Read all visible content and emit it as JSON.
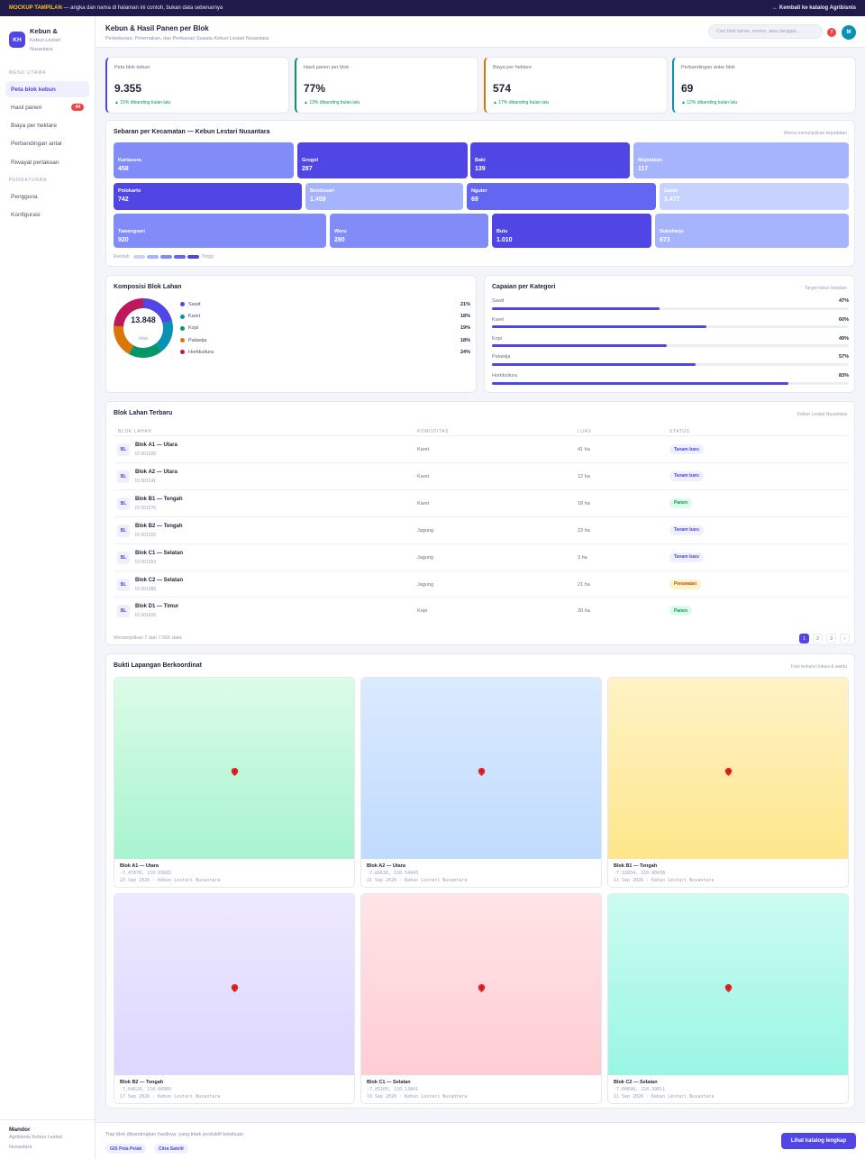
{
  "banner": {
    "tag": "MOCKUP TAMPILAN",
    "text": " — angka dan nama di halaman ini contoh, bukan data sebenarnya",
    "back_link": "← Kembali ke katalog Agribisnis"
  },
  "brand": {
    "logo": "KH",
    "title": "Kebun &",
    "subtitle_1": "Kebun Lestari",
    "subtitle_2": "Nusantara"
  },
  "sidebar": {
    "section_main": "MENU UTAMA",
    "items": [
      {
        "label": "Peta blok kebun",
        "active": true
      },
      {
        "label": "Hasil panen",
        "badge": "44"
      },
      {
        "label": "Biaya per hektare"
      },
      {
        "label": "Perbandingan antar"
      },
      {
        "label": "Riwayat perlakuan"
      }
    ],
    "section_settings": "PENGATURAN",
    "settings": [
      {
        "label": "Pengguna"
      },
      {
        "label": "Konfigurasi"
      }
    ],
    "footer": {
      "role": "Mandor",
      "org_1": "Agribisnis Kebun Lestari",
      "org_2": "Nusantara"
    }
  },
  "header": {
    "title": "Kebun & Hasil Panen per Blok",
    "subtitle": "Perkebunan, Peternakan, dan Perikanan Swasta Kebun Lestari Nusantara",
    "search_placeholder": "Cari blok lahan, nomor, atau tanggal...",
    "notif_count": "7",
    "avatar": "M"
  },
  "kpis": [
    {
      "label": "Peta blok kebun",
      "value": "9.355",
      "delta": "▲ 15% dibanding bulan lalu",
      "color": "#4f46e5"
    },
    {
      "label": "Hasil panen per blok",
      "value": "77%",
      "delta": "▲ 13% dibanding bulan lalu",
      "color": "#059669"
    },
    {
      "label": "Biaya per hektare",
      "value": "574",
      "delta": "▲ 17% dibanding bulan lalu",
      "color": "#d97706"
    },
    {
      "label": "Perbandingan antar blok",
      "value": "69",
      "delta": "▲ 12% dibanding bulan lalu",
      "color": "#0891b2"
    }
  ],
  "treemap": {
    "title": "Sebaran per Kecamatan — Kebun Lestari Nusantara",
    "note": "Warna menunjukkan kepadatan",
    "legend_low": "Rendah",
    "legend_high": "Tinggi",
    "cells": [
      {
        "name": "Kartasura",
        "value": "458",
        "color": "#818cf8"
      },
      {
        "name": "Grogol",
        "value": "287",
        "color": "#4f46e5"
      },
      {
        "name": "Baki",
        "value": "139",
        "color": "#4f46e5"
      },
      {
        "name": "Mojolaban",
        "value": "117",
        "color": "#a5b4fc"
      },
      {
        "name": "Polokarto",
        "value": "742",
        "color": "#4f46e5"
      },
      {
        "name": "Bendosari",
        "value": "1.459",
        "color": "#a5b4fc"
      },
      {
        "name": "Nguter",
        "value": "69",
        "color": "#6366f1"
      },
      {
        "name": "Gatak",
        "value": "1.477",
        "color": "#c7d2fe"
      },
      {
        "name": "Tawangsari",
        "value": "920",
        "color": "#818cf8"
      },
      {
        "name": "Weru",
        "value": "280",
        "color": "#818cf8"
      },
      {
        "name": "Bulu",
        "value": "1.010",
        "color": "#4f46e5"
      },
      {
        "name": "Sukoharjo",
        "value": "673",
        "color": "#a5b4fc"
      }
    ]
  },
  "composition": {
    "title": "Komposisi Blok Lahan",
    "total": "13.848",
    "total_label": "total",
    "items": [
      {
        "name": "Sawit",
        "pct": "21%",
        "value": 21,
        "color": "#4f46e5"
      },
      {
        "name": "Karet",
        "pct": "18%",
        "value": 18,
        "color": "#0891b2"
      },
      {
        "name": "Kopi",
        "pct": "19%",
        "value": 19,
        "color": "#059669"
      },
      {
        "name": "Palawija",
        "pct": "18%",
        "value": 18,
        "color": "#d97706"
      },
      {
        "name": "Hortikultura",
        "pct": "24%",
        "value": 24,
        "color": "#be185d"
      }
    ]
  },
  "achievement": {
    "title": "Capaian per Kategori",
    "note": "Target tahun berjalan",
    "items": [
      {
        "name": "Sawit",
        "pct": "47%",
        "value": 47
      },
      {
        "name": "Karet",
        "pct": "60%",
        "value": 60
      },
      {
        "name": "Kopi",
        "pct": "49%",
        "value": 49
      },
      {
        "name": "Palawija",
        "pct": "57%",
        "value": 57
      },
      {
        "name": "Hortikultura",
        "pct": "83%",
        "value": 83
      }
    ]
  },
  "table": {
    "title": "Blok Lahan Terbaru",
    "note": "Kebun Lestari Nusantara",
    "columns": [
      "BLOK LAHAN",
      "KOMODITAS",
      "LUAS",
      "STATUS"
    ],
    "rows": [
      {
        "icon": "BL",
        "name": "Blok A1 — Utara",
        "id": "ID 001206",
        "commodity": "Karet",
        "area": "41 ha",
        "status": "Tanam baru",
        "status_type": "new"
      },
      {
        "icon": "BL",
        "name": "Blok A2 — Utara",
        "id": "ID 001241",
        "commodity": "Karet",
        "area": "12 ha",
        "status": "Tanam baru",
        "status_type": "new"
      },
      {
        "icon": "BL",
        "name": "Blok B1 — Tengah",
        "id": "ID 001276",
        "commodity": "Karet",
        "area": "18 ha",
        "status": "Panen",
        "status_type": "harvest"
      },
      {
        "icon": "BL",
        "name": "Blok B2 — Tengah",
        "id": "ID 001315",
        "commodity": "Jagung",
        "area": "23 ha",
        "status": "Tanam baru",
        "status_type": "new"
      },
      {
        "icon": "BL",
        "name": "Blok C1 — Selatan",
        "id": "ID 001353",
        "commodity": "Jagung",
        "area": "3 ha",
        "status": "Tanam baru",
        "status_type": "new"
      },
      {
        "icon": "BL",
        "name": "Blok C2 — Selatan",
        "id": "ID 001389",
        "commodity": "Jagung",
        "area": "21 ha",
        "status": "Perawatan",
        "status_type": "care"
      },
      {
        "icon": "BL",
        "name": "Blok D1 — Timur",
        "id": "ID 001426",
        "commodity": "Kopi",
        "area": "20 ha",
        "status": "Panen",
        "status_type": "harvest"
      }
    ],
    "summary": "Menampilkan 7 dari 7.565 data",
    "pages": [
      "1",
      "2",
      "3",
      "›"
    ]
  },
  "evidence": {
    "title": "Bukti Lapangan Berkoordinat",
    "note": "Foto terkunci lokasi & waktu",
    "photos": [
      {
        "title": "Blok A1 — Utara",
        "coords": "-7.47870, 110.93685",
        "meta": "23 Sep 2026 · Kebun Lestari Nusantara",
        "c1": "#dcfce7",
        "c2": "#a7f3d0"
      },
      {
        "title": "Blok A2 — Utara",
        "coords": "-7.66636, 110.54443",
        "meta": "21 Sep 2026 · Kebun Lestari Nusantara",
        "c1": "#dbeafe",
        "c2": "#bfdbfe"
      },
      {
        "title": "Blok B1 — Tengah",
        "coords": "-7.32834, 110.90438",
        "meta": "11 Sep 2026 · Kebun Lestari Nusantara",
        "c1": "#fef3c7",
        "c2": "#fde68a"
      },
      {
        "title": "Blok B2 — Tengah",
        "coords": "-7.64624, 110.60985",
        "meta": "17 Sep 2026 · Kebun Lestari Nusantara",
        "c1": "#ede9fe",
        "c2": "#ddd6fe"
      },
      {
        "title": "Blok C1 — Selatan",
        "coords": "-7.85105, 110.13841",
        "meta": "19 Sep 2026 · Kebun Lestari Nusantara",
        "c1": "#ffe4e6",
        "c2": "#fecdd3"
      },
      {
        "title": "Blok C2 — Selatan",
        "coords": "-7.60696, 110.39611",
        "meta": "11 Sep 2026 · Kebun Lestari Nusantara",
        "c1": "#ccfbf1",
        "c2": "#99f6e4"
      }
    ]
  },
  "footer": {
    "note": "Tiap blok dibandingkan hasilnya, yang tidak produktif ketahuan",
    "chips": [
      "GIS Peta Petak",
      "Citra Satelit"
    ],
    "cta": "Lihat katalog lengkap"
  }
}
